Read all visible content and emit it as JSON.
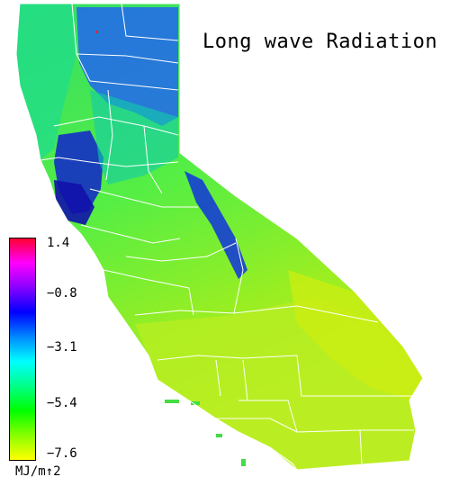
{
  "title": "Long wave Radiation",
  "legend": {
    "ticks": [
      "1.4",
      "−0.8",
      "−3.1",
      "−5.4",
      "−7.6"
    ],
    "units": "MJ/m↑2",
    "gradient_colors": [
      "#ff0030",
      "#ff00ff",
      "#8800ff",
      "#0000ff",
      "#0088ff",
      "#00ffff",
      "#00ff88",
      "#00ff00",
      "#88ff00",
      "#ffff00"
    ]
  },
  "map_colors": {
    "state_fill": "#55ee55",
    "north_coast": "#11dd88",
    "sierra_blue": "#2255ee",
    "deep_blue": "#1111bb",
    "south_yellow": "#bbee22",
    "desert_yellow": "#ccee11",
    "boundary": "#ffffff"
  }
}
